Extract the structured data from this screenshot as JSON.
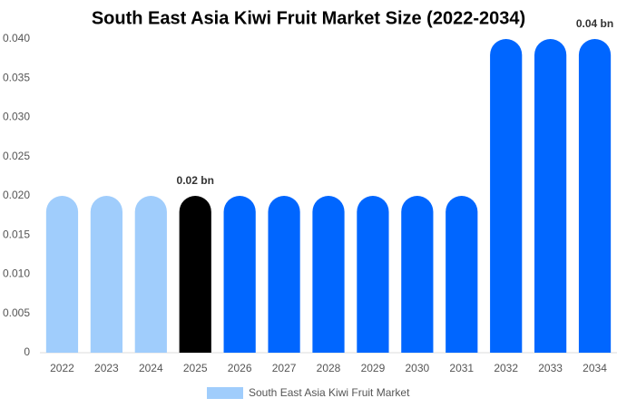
{
  "chart_data": {
    "type": "bar",
    "title": "South East Asia Kiwi Fruit Market Size (2022-2034)",
    "categories": [
      "2022",
      "2023",
      "2024",
      "2025",
      "2026",
      "2027",
      "2028",
      "2029",
      "2030",
      "2031",
      "2032",
      "2033",
      "2034"
    ],
    "series": [
      {
        "name": "South East Asia Kiwi Fruit Market",
        "color": "#a0cdfc",
        "values": [
          0.02,
          0.02,
          0.02,
          0.02,
          0.02,
          0.02,
          0.02,
          0.02,
          0.02,
          0.02,
          0.04,
          0.04,
          0.04
        ],
        "colors": [
          "#a0cdfc",
          "#a0cdfc",
          "#a0cdfc",
          "#000000",
          "#0066ff",
          "#0066ff",
          "#0066ff",
          "#0066ff",
          "#0066ff",
          "#0066ff",
          "#0066ff",
          "#0066ff",
          "#0066ff"
        ],
        "value_labels": [
          null,
          null,
          null,
          "0.02 bn",
          null,
          null,
          null,
          null,
          null,
          null,
          null,
          null,
          "0.04 bn"
        ]
      }
    ],
    "ylim": [
      0,
      0.04
    ],
    "yticks": [
      0,
      0.005,
      {
        "value": 0.01,
        "label": "0.010"
      },
      0.015,
      {
        "value": 0.02,
        "label": "0.020"
      },
      0.025,
      {
        "value": 0.03,
        "label": "0.030"
      },
      0.035,
      {
        "value": 0.04,
        "label": "0.040"
      }
    ],
    "grid": false,
    "legend": "bottom"
  }
}
